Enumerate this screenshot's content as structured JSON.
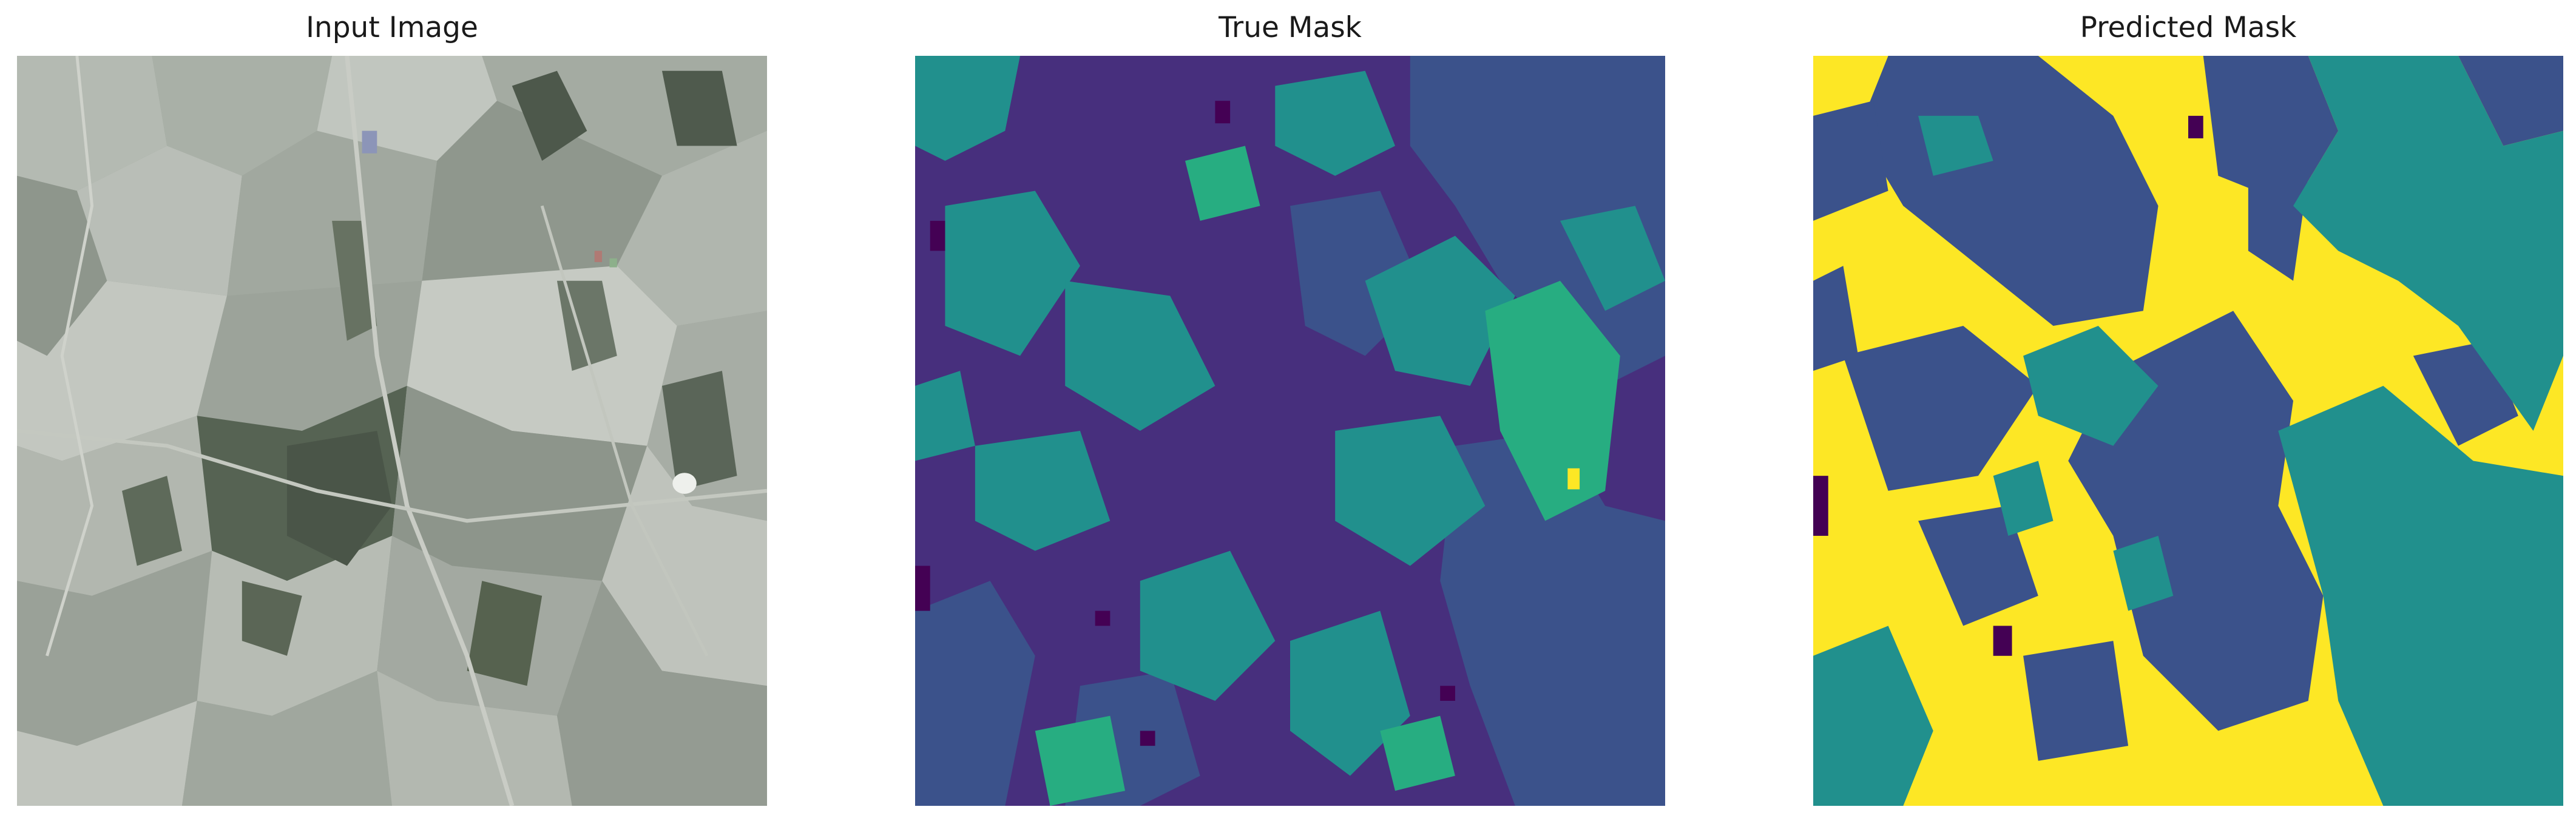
{
  "panels": {
    "input": {
      "title": "Input Image"
    },
    "true_mask": {
      "title": "True Mask"
    },
    "predicted_mask": {
      "title": "Predicted Mask"
    }
  },
  "colors": {
    "viridis_0": "#440154",
    "viridis_1": "#472f7d",
    "viridis_2": "#3b528b",
    "viridis_3": "#2c728e",
    "viridis_4": "#21908d",
    "viridis_5": "#27ad81",
    "viridis_9": "#fde725",
    "satellite_base": "#98a096",
    "satellite_dark": "#4a5548",
    "satellite_light": "#c4c9c2"
  }
}
